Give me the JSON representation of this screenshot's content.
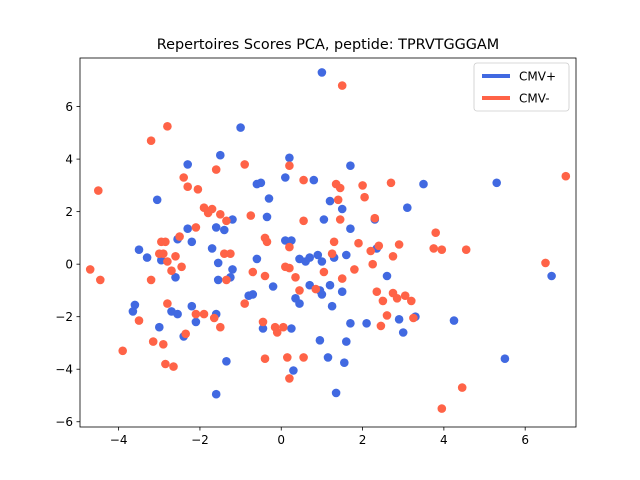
{
  "chart_data": {
    "type": "scatter",
    "title": "Repertoires Scores PCA, peptide: TPRVTGGGAM",
    "xlabel": "",
    "ylabel": "",
    "xlim": [
      -4.95,
      7.25
    ],
    "ylim": [
      -6.2,
      7.85
    ],
    "xticks": [
      -4,
      -2,
      0,
      2,
      4,
      6
    ],
    "yticks": [
      -6,
      -4,
      -2,
      0,
      2,
      4,
      6
    ],
    "grid": false,
    "legend_position": "top-right",
    "series": [
      {
        "name": "CMV+",
        "color": "#4169e1",
        "points": [
          [
            1.0,
            7.3
          ],
          [
            -1.0,
            5.2
          ],
          [
            -1.5,
            4.15
          ],
          [
            0.2,
            4.05
          ],
          [
            -2.3,
            3.8
          ],
          [
            1.7,
            3.75
          ],
          [
            0.8,
            3.2
          ],
          [
            0.1,
            3.3
          ],
          [
            -0.6,
            3.05
          ],
          [
            -0.5,
            3.1
          ],
          [
            3.5,
            3.05
          ],
          [
            5.3,
            3.1
          ],
          [
            -3.05,
            2.45
          ],
          [
            -0.3,
            2.5
          ],
          [
            1.2,
            2.4
          ],
          [
            1.5,
            2.1
          ],
          [
            3.1,
            2.15
          ],
          [
            -1.8,
            2.0
          ],
          [
            -1.2,
            1.7
          ],
          [
            -0.35,
            1.8
          ],
          [
            2.3,
            1.7
          ],
          [
            1.05,
            1.7
          ],
          [
            -2.3,
            1.35
          ],
          [
            -1.6,
            1.4
          ],
          [
            -1.4,
            1.3
          ],
          [
            -2.55,
            0.95
          ],
          [
            -2.2,
            0.85
          ],
          [
            0.1,
            0.9
          ],
          [
            0.25,
            0.9
          ],
          [
            0.9,
            0.35
          ],
          [
            1.7,
            1.35
          ],
          [
            2.35,
            0.6
          ],
          [
            1.6,
            0.35
          ],
          [
            1.0,
            0.1
          ],
          [
            1.3,
            0.25
          ],
          [
            0.7,
            0.25
          ],
          [
            -3.5,
            0.55
          ],
          [
            -3.3,
            0.25
          ],
          [
            -2.95,
            0.15
          ],
          [
            -1.7,
            0.6
          ],
          [
            -1.55,
            0.05
          ],
          [
            -1.2,
            -0.2
          ],
          [
            -1.25,
            -0.5
          ],
          [
            -0.6,
            0.2
          ],
          [
            0.45,
            0.2
          ],
          [
            0.6,
            0.1
          ],
          [
            -2.6,
            -0.5
          ],
          [
            -1.55,
            -0.6
          ],
          [
            -0.8,
            -1.2
          ],
          [
            -0.7,
            -1.15
          ],
          [
            0.7,
            -0.8
          ],
          [
            1.2,
            -0.8
          ],
          [
            2.6,
            -0.45
          ],
          [
            -3.6,
            -1.55
          ],
          [
            -3.65,
            -1.8
          ],
          [
            -2.7,
            -1.8
          ],
          [
            -2.55,
            -1.9
          ],
          [
            -2.2,
            -1.6
          ],
          [
            -2.1,
            -2.2
          ],
          [
            -1.6,
            -1.9
          ],
          [
            -0.2,
            -0.85
          ],
          [
            0.35,
            -1.3
          ],
          [
            0.45,
            -1.5
          ],
          [
            0.95,
            -1.0
          ],
          [
            1.25,
            -1.6
          ],
          [
            1.5,
            -1.05
          ],
          [
            1.0,
            -1.15
          ],
          [
            -3.0,
            -2.4
          ],
          [
            -0.45,
            -2.45
          ],
          [
            0.25,
            -2.45
          ],
          [
            1.7,
            -2.25
          ],
          [
            2.1,
            -2.25
          ],
          [
            2.9,
            -2.1
          ],
          [
            3.3,
            -2.0
          ],
          [
            3.0,
            -2.6
          ],
          [
            4.25,
            -2.15
          ],
          [
            -2.4,
            -2.75
          ],
          [
            0.95,
            -2.9
          ],
          [
            1.6,
            -2.95
          ],
          [
            -1.35,
            -3.7
          ],
          [
            0.3,
            -4.05
          ],
          [
            1.15,
            -3.55
          ],
          [
            1.55,
            -3.75
          ],
          [
            5.5,
            -3.6
          ],
          [
            -1.6,
            -4.95
          ],
          [
            1.35,
            -4.9
          ],
          [
            6.65,
            -0.45
          ]
        ]
      },
      {
        "name": "CMV-",
        "color": "#ff6347",
        "points": [
          [
            1.5,
            6.8
          ],
          [
            -2.8,
            5.25
          ],
          [
            -3.2,
            4.7
          ],
          [
            -0.9,
            3.8
          ],
          [
            0.2,
            3.75
          ],
          [
            -1.6,
            3.6
          ],
          [
            -2.4,
            3.3
          ],
          [
            -2.3,
            2.95
          ],
          [
            0.55,
            3.2
          ],
          [
            1.35,
            3.05
          ],
          [
            1.45,
            2.9
          ],
          [
            2.0,
            3.0
          ],
          [
            2.7,
            3.1
          ],
          [
            -4.5,
            2.8
          ],
          [
            -2.05,
            2.85
          ],
          [
            -1.9,
            2.15
          ],
          [
            -1.7,
            2.1
          ],
          [
            -1.8,
            1.95
          ],
          [
            1.4,
            2.45
          ],
          [
            2.05,
            2.55
          ],
          [
            -1.5,
            1.9
          ],
          [
            -0.75,
            1.85
          ],
          [
            0.55,
            1.65
          ],
          [
            1.45,
            1.7
          ],
          [
            2.3,
            1.75
          ],
          [
            3.8,
            1.2
          ],
          [
            -2.1,
            1.4
          ],
          [
            -1.35,
            1.65
          ],
          [
            -2.5,
            1.05
          ],
          [
            -2.95,
            0.85
          ],
          [
            -2.85,
            0.85
          ],
          [
            -0.4,
            1.0
          ],
          [
            -0.35,
            0.85
          ],
          [
            0.2,
            0.65
          ],
          [
            1.9,
            0.8
          ],
          [
            2.2,
            0.5
          ],
          [
            2.4,
            0.7
          ],
          [
            2.9,
            0.75
          ],
          [
            1.3,
            0.85
          ],
          [
            3.75,
            0.6
          ],
          [
            3.95,
            0.55
          ],
          [
            4.55,
            0.55
          ],
          [
            6.5,
            0.05
          ],
          [
            7.0,
            3.35
          ],
          [
            -3.0,
            0.4
          ],
          [
            -2.9,
            0.4
          ],
          [
            -2.8,
            0.1
          ],
          [
            -2.6,
            0.3
          ],
          [
            -2.45,
            -0.1
          ],
          [
            -1.25,
            0.4
          ],
          [
            -1.4,
            0.4
          ],
          [
            -0.7,
            -0.3
          ],
          [
            -0.4,
            -0.45
          ],
          [
            0.1,
            -0.1
          ],
          [
            0.2,
            -0.15
          ],
          [
            0.35,
            -0.5
          ],
          [
            0.45,
            -1.0
          ],
          [
            0.85,
            -0.95
          ],
          [
            1.05,
            -0.3
          ],
          [
            1.5,
            -0.55
          ],
          [
            1.8,
            -0.2
          ],
          [
            2.25,
            0.0
          ],
          [
            2.75,
            0.3
          ],
          [
            -4.7,
            -0.2
          ],
          [
            -4.45,
            -0.6
          ],
          [
            -3.2,
            -0.6
          ],
          [
            -2.7,
            -0.25
          ],
          [
            -1.35,
            -0.6
          ],
          [
            -0.9,
            -1.5
          ],
          [
            2.35,
            -1.05
          ],
          [
            2.5,
            -1.4
          ],
          [
            2.75,
            -1.1
          ],
          [
            2.85,
            -1.3
          ],
          [
            3.05,
            -1.2
          ],
          [
            3.2,
            -1.4
          ],
          [
            -2.8,
            -1.5
          ],
          [
            -2.1,
            -1.9
          ],
          [
            -1.9,
            -1.9
          ],
          [
            -1.65,
            -2.05
          ],
          [
            -1.5,
            -2.4
          ],
          [
            -0.45,
            -2.2
          ],
          [
            -0.15,
            -2.4
          ],
          [
            0.05,
            -2.4
          ],
          [
            -3.5,
            -2.15
          ],
          [
            -2.35,
            -2.65
          ],
          [
            -0.1,
            -2.6
          ],
          [
            2.45,
            -2.35
          ],
          [
            2.6,
            -1.95
          ],
          [
            3.25,
            -2.05
          ],
          [
            -3.15,
            -2.95
          ],
          [
            -2.9,
            -3.05
          ],
          [
            -2.85,
            -3.8
          ],
          [
            -2.65,
            -3.9
          ],
          [
            -3.9,
            -3.3
          ],
          [
            -0.4,
            -3.6
          ],
          [
            0.15,
            -3.55
          ],
          [
            0.55,
            -3.55
          ],
          [
            0.2,
            -4.35
          ],
          [
            4.45,
            -4.7
          ],
          [
            3.95,
            -5.5
          ],
          [
            1.25,
            0.4
          ]
        ]
      }
    ]
  }
}
